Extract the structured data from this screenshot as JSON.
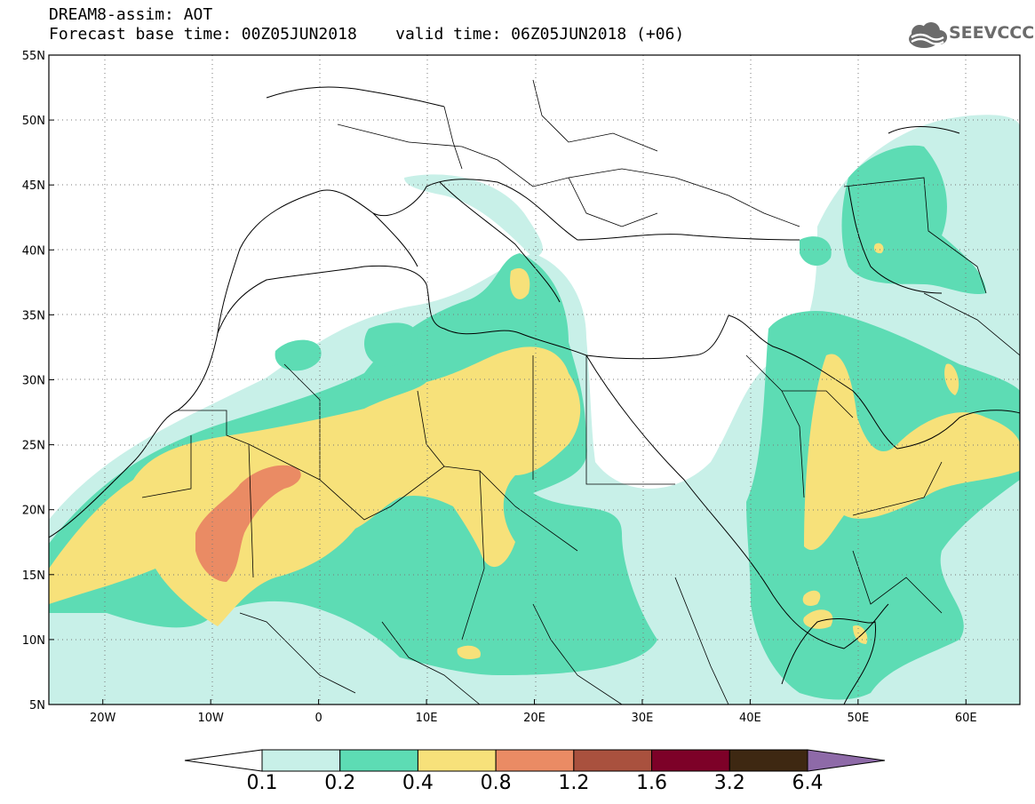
{
  "header": {
    "title_line1": "DREAM8-assim: AOT",
    "title_line2": "Forecast base time: 00Z05JUN2018    valid time: 06Z05JUN2018 (+06)",
    "logo_text": "SEEVCCC",
    "logo_icon": "cloud-icon"
  },
  "map": {
    "lon_range": [
      -25,
      65
    ],
    "lat_range": [
      5,
      55
    ],
    "lat_ticks": [
      {
        "value": 55,
        "label": "55N"
      },
      {
        "value": 50,
        "label": "50N"
      },
      {
        "value": 45,
        "label": "45N"
      },
      {
        "value": 40,
        "label": "40N"
      },
      {
        "value": 35,
        "label": "35N"
      },
      {
        "value": 30,
        "label": "30N"
      },
      {
        "value": 25,
        "label": "25N"
      },
      {
        "value": 20,
        "label": "20N"
      },
      {
        "value": 15,
        "label": "15N"
      },
      {
        "value": 10,
        "label": "10N"
      },
      {
        "value": 5,
        "label": "5N"
      }
    ],
    "lon_ticks": [
      {
        "value": -20,
        "label": "20W"
      },
      {
        "value": -10,
        "label": "10W"
      },
      {
        "value": 0,
        "label": "0"
      },
      {
        "value": 10,
        "label": "10E"
      },
      {
        "value": 20,
        "label": "20E"
      },
      {
        "value": 30,
        "label": "30E"
      },
      {
        "value": 40,
        "label": "40E"
      },
      {
        "value": 50,
        "label": "50E"
      },
      {
        "value": 60,
        "label": "60E"
      }
    ],
    "grid": "dotted"
  },
  "colorbar": {
    "levels": [
      "0.1",
      "0.2",
      "0.4",
      "0.8",
      "1.2",
      "1.6",
      "3.2",
      "6.4"
    ],
    "colors": [
      "#ffffff",
      "#c8f0e8",
      "#5ddcb4",
      "#f7e17a",
      "#ea8b64",
      "#a9513e",
      "#7d0128",
      "#3e2812",
      "#8e6aa8"
    ]
  }
}
